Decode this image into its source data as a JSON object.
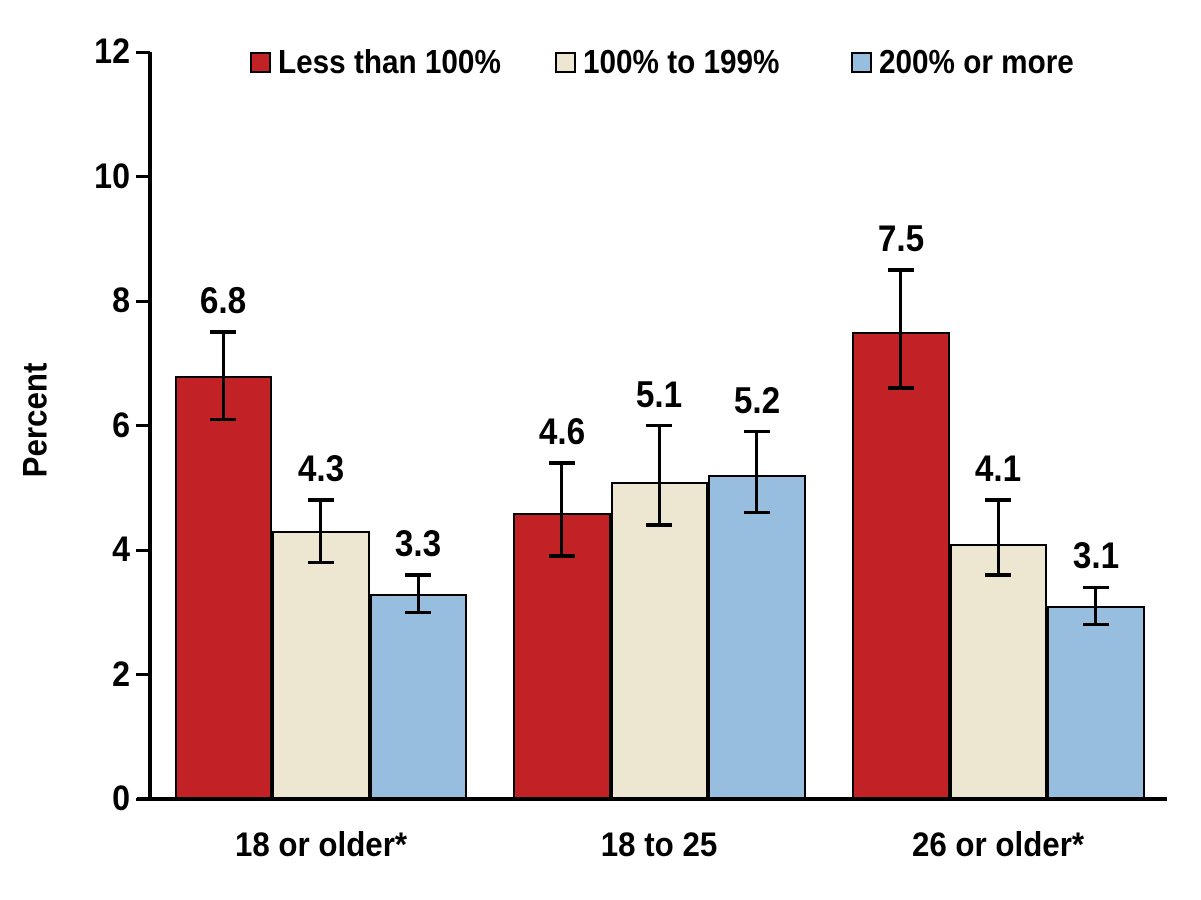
{
  "chart_data": {
    "type": "bar",
    "title": "",
    "ylabel": "Percent",
    "xlabel": "",
    "ylim": [
      0,
      12
    ],
    "yticks": [
      0,
      2,
      4,
      6,
      8,
      10,
      12
    ],
    "grid": false,
    "legend_position": "top",
    "categories": [
      "18 or older*",
      "18 to 25",
      "26 or older*"
    ],
    "series": [
      {
        "name": "Less than 100%",
        "color": "#c22126",
        "values": [
          6.8,
          4.6,
          7.5
        ],
        "error_low": [
          6.1,
          3.9,
          6.6
        ],
        "error_high": [
          7.5,
          5.4,
          8.5
        ]
      },
      {
        "name": "100% to 199%",
        "color": "#ede7d2",
        "values": [
          4.3,
          5.1,
          4.1
        ],
        "error_low": [
          3.8,
          4.4,
          3.6
        ],
        "error_high": [
          4.8,
          6.0,
          4.8
        ]
      },
      {
        "name": "200% or more",
        "color": "#97bede",
        "values": [
          3.3,
          5.2,
          3.1
        ],
        "error_low": [
          3.0,
          4.6,
          2.8
        ],
        "error_high": [
          3.6,
          5.9,
          3.4
        ]
      }
    ],
    "bar_edge_color": "#000000",
    "error_bar_color": "#000000",
    "text_color": "#000000"
  }
}
